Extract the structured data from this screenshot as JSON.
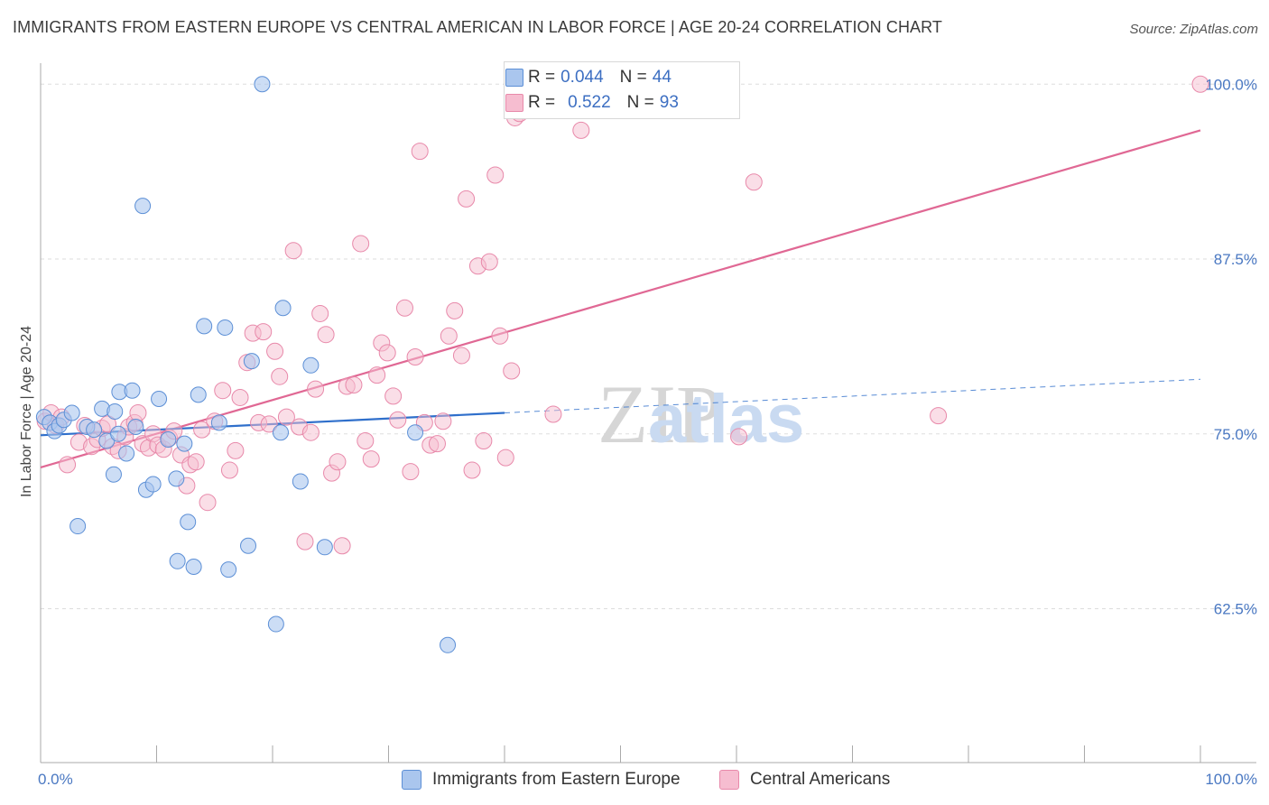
{
  "title": "IMMIGRANTS FROM EASTERN EUROPE VS CENTRAL AMERICAN IN LABOR FORCE | AGE 20-24 CORRELATION CHART",
  "source": "Source: ZipAtlas.com",
  "watermark": {
    "zip": "ZIP",
    "atlas": "atlas"
  },
  "legend": {
    "blue": {
      "r_label": "R =",
      "r_value": "0.044",
      "n_label": "N =",
      "n_value": "44"
    },
    "pink": {
      "r_label": "R =",
      "r_value": "0.522",
      "n_label": "N =",
      "n_value": "93"
    }
  },
  "bottom_legend": {
    "blue_label": "Immigrants from Eastern Europe",
    "pink_label": "Central Americans"
  },
  "colors": {
    "blue_fill": "#aac6ee",
    "blue_stroke": "#5c8fd6",
    "blue_line": "#2f6fcb",
    "pink_fill": "#f6bdd0",
    "pink_stroke": "#e889aa",
    "pink_line": "#e06894",
    "grid": "#dddddd",
    "axis": "#aaaaaa"
  },
  "chart_data": {
    "type": "scatter",
    "title": "IMMIGRANTS FROM EASTERN EUROPE VS CENTRAL AMERICAN IN LABOR FORCE | AGE 20-24 CORRELATION CHART",
    "xlabel": "",
    "ylabel": "In Labor Force | Age 20-24",
    "xlim": [
      0,
      100
    ],
    "ylim": [
      51.5,
      101.5
    ],
    "x_tick_labels": [
      "0.0%",
      "100.0%"
    ],
    "y_ticks": [
      62.5,
      75.0,
      87.5,
      100.0
    ],
    "y_tick_labels": [
      "62.5%",
      "75.0%",
      "87.5%",
      "100.0%"
    ],
    "series": [
      {
        "name": "Immigrants from Eastern Europe",
        "color": "blue",
        "R": 0.044,
        "N": 44,
        "trend": {
          "x0": 0,
          "y0": 74.9,
          "x1": 40,
          "y1": 76.5,
          "dashed_to_x": 100,
          "dashed_to_y": 78.9
        },
        "points": [
          [
            0.3,
            76.2
          ],
          [
            0.8,
            75.8
          ],
          [
            1.2,
            75.2
          ],
          [
            1.6,
            75.6
          ],
          [
            2.0,
            76.0
          ],
          [
            2.7,
            76.5
          ],
          [
            3.2,
            68.4
          ],
          [
            4.0,
            75.5
          ],
          [
            4.6,
            75.3
          ],
          [
            5.3,
            76.8
          ],
          [
            5.7,
            74.5
          ],
          [
            6.3,
            72.1
          ],
          [
            6.4,
            76.6
          ],
          [
            6.7,
            75.0
          ],
          [
            6.8,
            78.0
          ],
          [
            7.4,
            73.6
          ],
          [
            7.9,
            78.1
          ],
          [
            8.2,
            75.5
          ],
          [
            8.8,
            91.3
          ],
          [
            9.1,
            71.0
          ],
          [
            9.7,
            71.4
          ],
          [
            10.2,
            77.5
          ],
          [
            11.0,
            74.6
          ],
          [
            11.7,
            71.8
          ],
          [
            11.8,
            65.9
          ],
          [
            12.4,
            74.3
          ],
          [
            12.7,
            68.7
          ],
          [
            13.2,
            65.5
          ],
          [
            13.6,
            77.8
          ],
          [
            14.1,
            82.7
          ],
          [
            15.4,
            75.8
          ],
          [
            15.9,
            82.6
          ],
          [
            16.2,
            65.3
          ],
          [
            17.9,
            67.0
          ],
          [
            18.2,
            80.2
          ],
          [
            19.1,
            100.0
          ],
          [
            20.3,
            61.4
          ],
          [
            20.7,
            75.1
          ],
          [
            20.9,
            84.0
          ],
          [
            22.4,
            71.6
          ],
          [
            23.3,
            79.9
          ],
          [
            24.5,
            66.9
          ],
          [
            32.3,
            75.1
          ],
          [
            35.1,
            59.9
          ]
        ]
      },
      {
        "name": "Central Americans",
        "color": "pink",
        "R": 0.522,
        "N": 93,
        "trend": {
          "x0": 0,
          "y0": 72.6,
          "x1": 100,
          "y1": 96.7
        },
        "points": [
          [
            0.4,
            75.9
          ],
          [
            0.9,
            76.5
          ],
          [
            1.3,
            75.6
          ],
          [
            1.8,
            76.2
          ],
          [
            2.3,
            72.8
          ],
          [
            3.3,
            74.4
          ],
          [
            3.8,
            75.6
          ],
          [
            4.4,
            74.1
          ],
          [
            4.9,
            74.6
          ],
          [
            5.3,
            75.4
          ],
          [
            5.8,
            75.7
          ],
          [
            6.2,
            74.1
          ],
          [
            6.7,
            73.8
          ],
          [
            7.3,
            74.8
          ],
          [
            7.6,
            75.5
          ],
          [
            8.1,
            75.8
          ],
          [
            8.4,
            76.5
          ],
          [
            8.8,
            74.3
          ],
          [
            9.3,
            74.0
          ],
          [
            9.7,
            75.0
          ],
          [
            10.1,
            74.2
          ],
          [
            10.6,
            73.9
          ],
          [
            11.1,
            74.7
          ],
          [
            11.5,
            75.2
          ],
          [
            12.1,
            73.5
          ],
          [
            12.6,
            71.3
          ],
          [
            12.9,
            72.8
          ],
          [
            13.4,
            73.0
          ],
          [
            13.9,
            75.3
          ],
          [
            14.4,
            70.1
          ],
          [
            15.0,
            75.9
          ],
          [
            15.7,
            78.1
          ],
          [
            16.3,
            72.4
          ],
          [
            16.8,
            73.8
          ],
          [
            17.2,
            77.6
          ],
          [
            17.8,
            80.1
          ],
          [
            18.3,
            82.2
          ],
          [
            18.8,
            75.8
          ],
          [
            19.2,
            82.3
          ],
          [
            19.7,
            75.7
          ],
          [
            20.2,
            80.9
          ],
          [
            20.6,
            79.1
          ],
          [
            21.2,
            76.2
          ],
          [
            21.8,
            88.1
          ],
          [
            22.3,
            75.5
          ],
          [
            22.8,
            67.3
          ],
          [
            23.3,
            75.1
          ],
          [
            23.7,
            78.2
          ],
          [
            24.1,
            83.6
          ],
          [
            24.6,
            82.1
          ],
          [
            25.1,
            72.2
          ],
          [
            25.6,
            73.0
          ],
          [
            26.0,
            67.0
          ],
          [
            26.4,
            78.4
          ],
          [
            27.0,
            78.5
          ],
          [
            27.6,
            88.6
          ],
          [
            28.0,
            74.5
          ],
          [
            28.5,
            73.2
          ],
          [
            29.0,
            79.2
          ],
          [
            29.4,
            81.5
          ],
          [
            29.9,
            80.8
          ],
          [
            30.4,
            77.7
          ],
          [
            30.8,
            76.0
          ],
          [
            31.4,
            84.0
          ],
          [
            31.9,
            72.3
          ],
          [
            32.3,
            80.5
          ],
          [
            32.7,
            95.2
          ],
          [
            33.1,
            75.8
          ],
          [
            33.6,
            74.2
          ],
          [
            34.2,
            74.3
          ],
          [
            34.7,
            75.9
          ],
          [
            35.2,
            82.0
          ],
          [
            35.7,
            83.8
          ],
          [
            36.3,
            80.6
          ],
          [
            36.7,
            91.8
          ],
          [
            37.2,
            72.4
          ],
          [
            37.7,
            87.0
          ],
          [
            38.2,
            74.5
          ],
          [
            38.7,
            87.3
          ],
          [
            39.2,
            93.5
          ],
          [
            39.6,
            82.0
          ],
          [
            40.1,
            73.3
          ],
          [
            40.6,
            79.5
          ],
          [
            40.9,
            97.6
          ],
          [
            41.3,
            97.9
          ],
          [
            42.8,
            100.0
          ],
          [
            44.2,
            76.4
          ],
          [
            46.6,
            96.7
          ],
          [
            57.1,
            100.0
          ],
          [
            60.2,
            74.8
          ],
          [
            61.5,
            93.0
          ],
          [
            77.4,
            76.3
          ],
          [
            100.0,
            100.0
          ]
        ]
      }
    ]
  }
}
